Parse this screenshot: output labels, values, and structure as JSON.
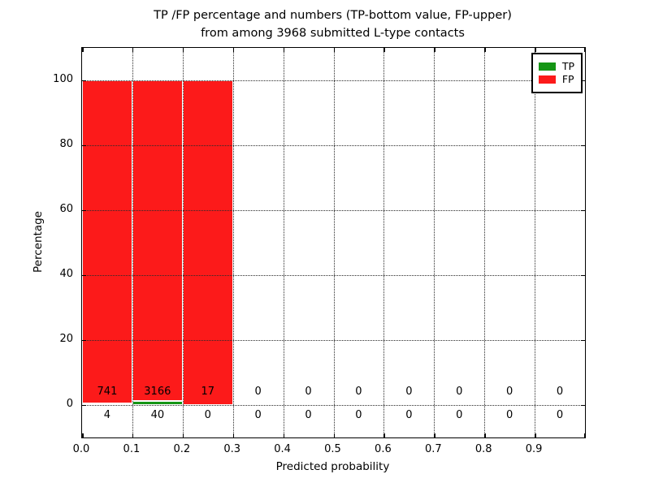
{
  "title_line1": "TP /FP percentage and numbers (TP-bottom value, FP-upper)",
  "title_line2": "from among 3968 submitted L-type contacts",
  "total_submitted": 3968,
  "colors": {
    "tp_green": "#159515",
    "fp_red": "#fc1a1a",
    "grid": "#2a2a2a"
  },
  "chart_data": {
    "type": "bar",
    "stacked": true,
    "title": "TP /FP percentage and numbers (TP-bottom value, FP-upper) from among 3968 submitted L-type contacts",
    "xlabel": "Predicted probability",
    "ylabel": "Percentage",
    "xlim": [
      0.0,
      1.0
    ],
    "ylim": [
      -10,
      110
    ],
    "grid": "dotted",
    "legend_position": "upper right",
    "x_tick_labels": [
      "0.0",
      "0.1",
      "0.2",
      "0.3",
      "0.4",
      "0.5",
      "0.6",
      "0.7",
      "0.8",
      "0.9"
    ],
    "y_tick_values": [
      0,
      20,
      40,
      60,
      80,
      100
    ],
    "bin_width": 0.1,
    "bin_starts": [
      0.0,
      0.1,
      0.2,
      0.3,
      0.4,
      0.5,
      0.6,
      0.7,
      0.8,
      0.9
    ],
    "series": [
      {
        "name": "TP",
        "color": "#159515",
        "percent": [
          0.54,
          1.25,
          0,
          0,
          0,
          0,
          0,
          0,
          0,
          0
        ],
        "counts": [
          4,
          40,
          0,
          0,
          0,
          0,
          0,
          0,
          0,
          0
        ]
      },
      {
        "name": "FP",
        "color": "#fc1a1a",
        "percent": [
          99.46,
          98.75,
          100,
          0,
          0,
          0,
          0,
          0,
          0,
          0
        ],
        "counts": [
          741,
          3166,
          17,
          0,
          0,
          0,
          0,
          0,
          0,
          0
        ]
      }
    ]
  }
}
